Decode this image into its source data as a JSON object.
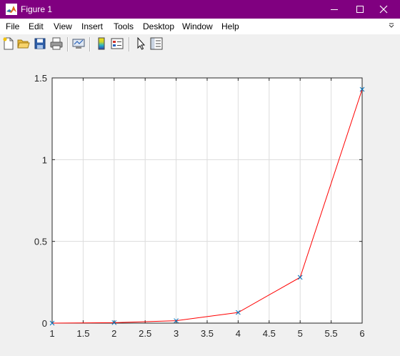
{
  "window": {
    "title": "Figure 1",
    "title_bar_color": "#800080"
  },
  "menu": {
    "items": [
      "File",
      "Edit",
      "View",
      "Insert",
      "Tools",
      "Desktop",
      "Window",
      "Help"
    ],
    "overflow_icon": "chevron-down-icon"
  },
  "toolbar": {
    "buttons": [
      "new-figure-icon",
      "open-file-icon",
      "save-icon",
      "print-icon",
      "link-plot-icon",
      "insert-colorbar-icon",
      "insert-legend-icon",
      "edit-plot-pointer-icon",
      "property-inspector-icon"
    ]
  },
  "chart_data": {
    "type": "line",
    "title": "",
    "xlabel": "",
    "ylabel": "",
    "xlim": [
      1,
      6
    ],
    "ylim": [
      0,
      1.5
    ],
    "grid": true,
    "x_ticks": [
      "1",
      "1.5",
      "2",
      "2.5",
      "3",
      "3.5",
      "4",
      "4.5",
      "5",
      "5.5",
      "6"
    ],
    "y_ticks": [
      "0",
      "0.5",
      "1",
      "1.5"
    ],
    "series": [
      {
        "x": [
          1,
          2,
          3,
          4,
          5,
          6
        ],
        "y": [
          0,
          0.003,
          0.015,
          0.065,
          0.28,
          1.43
        ],
        "line_color": "#ff0000",
        "marker": "x",
        "marker_color": "#0072bd"
      }
    ]
  }
}
